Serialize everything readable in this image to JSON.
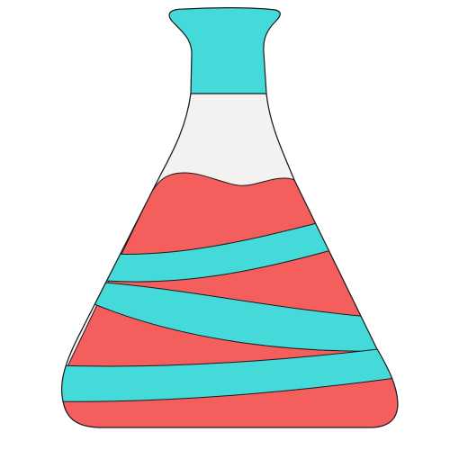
{
  "illustration": {
    "subject": "erlenmeyer-flask",
    "colors": {
      "background": "#ffffff",
      "outline": "#1a1a1a",
      "glass": "#f3f2f1",
      "liquid": "#f45e5c",
      "stripe": "#44dada"
    }
  }
}
